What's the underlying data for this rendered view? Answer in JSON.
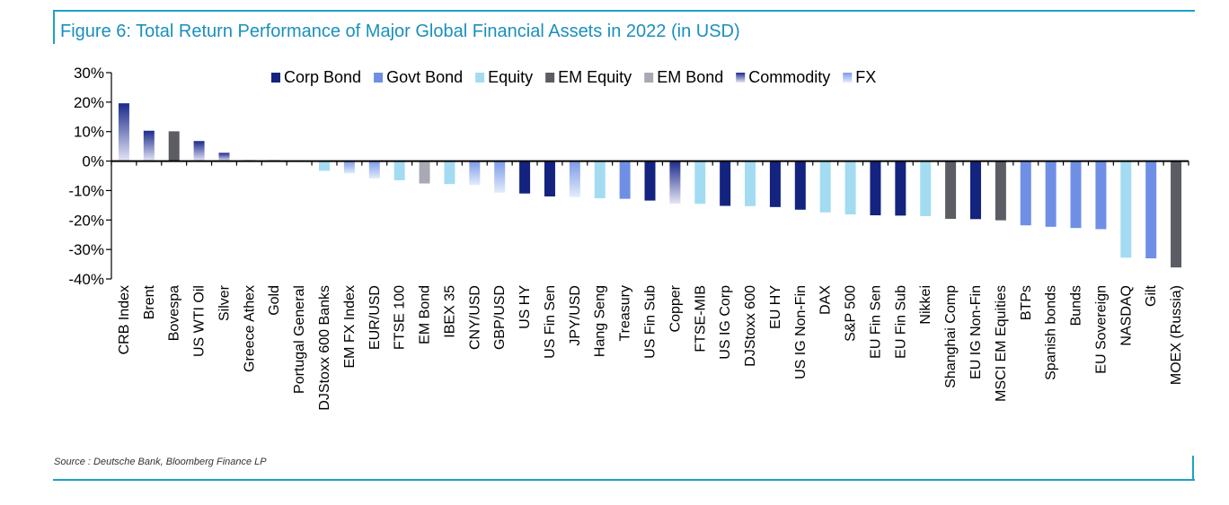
{
  "colors": {
    "frame": "#1aa3c8",
    "title": "#1a8fbf",
    "corp_bond": "#13237f",
    "govt_bond": "#6f8fe6",
    "equity": "#a3dcf2",
    "em_equity": "#5b5d63",
    "em_bond": "#a9a9b3",
    "commodity_top": "#1b2a8c",
    "commodity_bottom": "#e5e6f6",
    "fx_top": "#7d9ae8",
    "fx_bottom": "#e2ecfb"
  },
  "figure": {
    "title": "Figure 6: Total Return Performance of Major Global Financial Assets in 2022 (in USD)",
    "source": "Source : Deutsche Bank, Bloomberg Finance LP"
  },
  "chart_data": {
    "type": "bar",
    "title": "Figure 6: Total Return Performance of Major Global Financial Assets in 2022 (in USD)",
    "xlabel": "",
    "ylabel": "",
    "ylim": [
      -40,
      30
    ],
    "yticks": [
      30,
      20,
      10,
      0,
      -10,
      -20,
      -30,
      -40
    ],
    "ytick_labels": [
      "30%",
      "20%",
      "10%",
      "0%",
      "-10%",
      "-20%",
      "-30%",
      "-40%"
    ],
    "grid": false,
    "legend_position": "top",
    "legend": [
      {
        "name": "Corp Bond",
        "style": "corp_bond"
      },
      {
        "name": "Govt Bond",
        "style": "govt_bond"
      },
      {
        "name": "Equity",
        "style": "equity"
      },
      {
        "name": "EM Equity",
        "style": "em_equity"
      },
      {
        "name": "EM Bond",
        "style": "em_bond"
      },
      {
        "name": "Commodity",
        "style": "commodity"
      },
      {
        "name": "FX",
        "style": "fx"
      }
    ],
    "categories": [
      "CRB Index",
      "Brent",
      "Bovespa",
      "US WTI Oil",
      "Silver",
      "Greece Athex",
      "Gold",
      "Portugal General",
      "DJStoxx 600 Banks",
      "EM FX Index",
      "EUR/USD",
      "FTSE 100",
      "EM Bond",
      "IBEX 35",
      "CNY/USD",
      "GBP/USD",
      "US HY",
      "US Fin Sen",
      "JPY/USD",
      "Hang Seng",
      "Treasury",
      "US Fin Sub",
      "Copper",
      "FTSE-MIB",
      "US IG Corp",
      "DJStoxx 600",
      "EU HY",
      "US IG Non-Fin",
      "DAX",
      "S&P 500",
      "EU Fin Sen",
      "EU Fin Sub",
      "Nikkei",
      "Shanghai Comp",
      "EU IG Non-Fin",
      "MSCI EM Equities",
      "BTPs",
      "Spanish bonds",
      "Bunds",
      "EU Sovereign",
      "NASDAQ",
      "Gilt",
      "MOEX (Russia)"
    ],
    "values": [
      19.6,
      10.3,
      10.1,
      6.8,
      2.8,
      0.4,
      0.3,
      0.2,
      -3.3,
      -4.2,
      -5.9,
      -6.5,
      -7.6,
      -7.8,
      -8.1,
      -10.7,
      -11.0,
      -12.0,
      -12.2,
      -12.6,
      -12.8,
      -13.4,
      -14.5,
      -14.5,
      -15.2,
      -15.3,
      -15.6,
      -16.5,
      -17.4,
      -18.1,
      -18.4,
      -18.5,
      -18.7,
      -19.6,
      -19.7,
      -20.1,
      -21.8,
      -22.3,
      -22.7,
      -23.1,
      -32.8,
      -33.0,
      -36.1
    ],
    "classes": [
      "commodity",
      "commodity",
      "em_equity",
      "commodity",
      "commodity",
      "equity",
      "commodity",
      "equity",
      "equity",
      "fx",
      "fx",
      "equity",
      "em_bond",
      "equity",
      "fx",
      "fx",
      "corp_bond",
      "corp_bond",
      "fx",
      "equity",
      "govt_bond",
      "corp_bond",
      "commodity",
      "equity",
      "corp_bond",
      "equity",
      "corp_bond",
      "corp_bond",
      "equity",
      "equity",
      "corp_bond",
      "corp_bond",
      "equity",
      "em_equity",
      "corp_bond",
      "em_equity",
      "govt_bond",
      "govt_bond",
      "govt_bond",
      "govt_bond",
      "equity",
      "govt_bond",
      "em_equity"
    ]
  }
}
